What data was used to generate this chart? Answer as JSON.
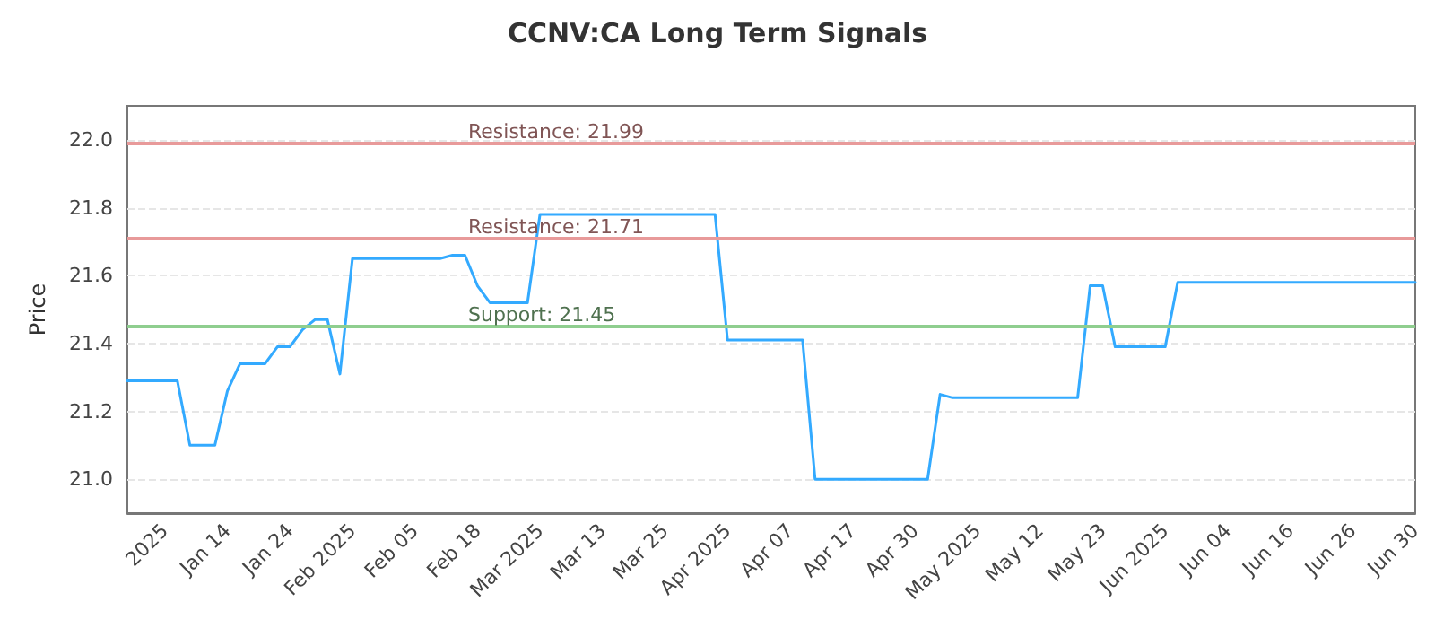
{
  "chart_data": {
    "type": "line",
    "title": "CCNV:CA Long Term Signals",
    "ylabel": "Price",
    "categories": [
      null,
      null,
      null,
      "2025",
      null,
      null,
      null,
      null,
      "Jan 14",
      null,
      null,
      null,
      null,
      "Jan 24",
      null,
      null,
      null,
      null,
      "Feb 2025",
      null,
      null,
      null,
      null,
      "Feb 05",
      null,
      null,
      null,
      null,
      "Feb 18",
      null,
      null,
      null,
      null,
      "Mar 2025",
      null,
      null,
      null,
      null,
      "Mar 13",
      null,
      null,
      null,
      null,
      "Mar 25",
      null,
      null,
      null,
      null,
      "Apr 2025",
      null,
      null,
      null,
      null,
      "Apr 07",
      null,
      null,
      null,
      null,
      "Apr 17",
      null,
      null,
      null,
      null,
      "Apr 30",
      null,
      null,
      null,
      null,
      "May 2025",
      null,
      null,
      null,
      null,
      "May 12",
      null,
      null,
      null,
      null,
      "May 23",
      null,
      null,
      null,
      null,
      "Jun 2025",
      null,
      null,
      null,
      null,
      "Jun 04",
      null,
      null,
      null,
      null,
      "Jun 16",
      null,
      null,
      null,
      null,
      "Jun 26",
      null,
      null,
      null,
      null,
      "Jun 30"
    ],
    "series": [
      {
        "color": "#33aaff",
        "values": [
          21.29,
          21.29,
          21.29,
          21.29,
          21.29,
          21.1,
          21.1,
          21.1,
          21.26,
          21.34,
          21.34,
          21.34,
          21.39,
          21.39,
          21.44,
          21.47,
          21.47,
          21.31,
          21.65,
          21.65,
          21.65,
          21.65,
          21.65,
          21.65,
          21.65,
          21.65,
          21.66,
          21.66,
          21.57,
          21.52,
          21.52,
          21.52,
          21.52,
          21.78,
          21.78,
          21.78,
          21.78,
          21.78,
          21.78,
          21.78,
          21.78,
          21.78,
          21.78,
          21.78,
          21.78,
          21.78,
          21.78,
          21.78,
          21.41,
          21.41,
          21.41,
          21.41,
          21.41,
          21.41,
          21.41,
          21.0,
          21.0,
          21.0,
          21.0,
          21.0,
          21.0,
          21.0,
          21.0,
          21.0,
          21.0,
          21.25,
          21.24,
          21.24,
          21.24,
          21.24,
          21.24,
          21.24,
          21.24,
          21.24,
          21.24,
          21.24,
          21.24,
          21.57,
          21.57,
          21.39,
          21.39,
          21.39,
          21.39,
          21.39,
          21.58,
          21.58,
          21.58,
          21.58,
          21.58,
          21.58,
          21.58,
          21.58,
          21.58,
          21.58,
          21.58,
          21.58,
          21.58,
          21.58,
          21.58,
          21.58,
          21.58,
          21.58,
          21.58,
          21.58
        ]
      }
    ],
    "ylim": [
      20.9,
      22.1
    ],
    "yticks": [
      {
        "value": 21,
        "label": "21.0"
      },
      21.2,
      21.4,
      21.6,
      21.8,
      {
        "value": 22,
        "label": "22.0"
      }
    ],
    "ref_lines": [
      {
        "axis": "y",
        "value": 21.99,
        "label": "Resistance: 21.99",
        "color": "#e89a9a"
      },
      {
        "axis": "y",
        "value": 21.71,
        "label": "Resistance: 21.71",
        "color": "#e89a9a"
      },
      {
        "axis": "y",
        "value": 21.45,
        "label": "Support: 21.45",
        "color": "#8fce8f"
      }
    ],
    "grid": "y",
    "marker": "none",
    "line_style": "solid"
  }
}
